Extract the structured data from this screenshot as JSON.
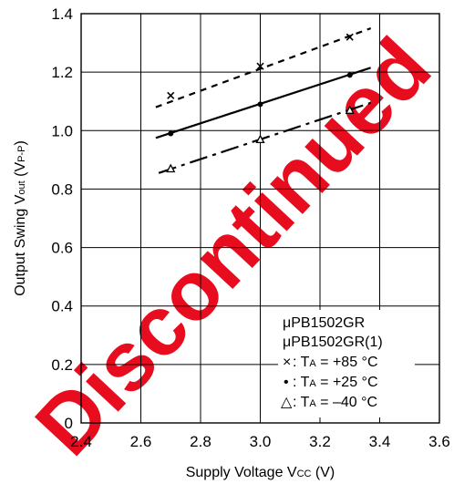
{
  "chart_data": {
    "type": "line",
    "xlabel": {
      "main": "Supply Voltage V",
      "sub": "CC",
      "unit": " (V)"
    },
    "ylabel": {
      "main": "Output Swing V",
      "sub": "out",
      "unit_pre": " (V",
      "unit_sub": "P-P",
      "unit_post": ")"
    },
    "xlim": [
      2.4,
      3.6
    ],
    "ylim": [
      0,
      1.4
    ],
    "xticks": [
      2.4,
      2.6,
      2.8,
      3.0,
      3.2,
      3.4,
      3.6
    ],
    "yticks": [
      0,
      0.2,
      0.4,
      0.6,
      0.8,
      1.0,
      1.2,
      1.4
    ],
    "xtick_labels": [
      "2.4",
      "2.6",
      "2.8",
      "3.0",
      "3.2",
      "3.4",
      "3.6"
    ],
    "ytick_labels": [
      "0",
      "0.2",
      "0.4",
      "0.6",
      "0.8",
      "1.0",
      "1.2",
      "1.4"
    ],
    "grid": true,
    "series": [
      {
        "name": "TA = +85 °C",
        "marker": "x",
        "line": "short-dash",
        "line_x": [
          2.65,
          3.37
        ],
        "line_y": [
          1.08,
          1.35
        ],
        "points": [
          {
            "x": 2.7,
            "y": 1.12
          },
          {
            "x": 3.0,
            "y": 1.22
          },
          {
            "x": 3.3,
            "y": 1.32
          }
        ]
      },
      {
        "name": "TA = +25 °C",
        "marker": "dot",
        "line": "solid",
        "line_x": [
          2.65,
          3.37
        ],
        "line_y": [
          0.975,
          1.215
        ],
        "points": [
          {
            "x": 2.7,
            "y": 0.99
          },
          {
            "x": 3.0,
            "y": 1.09
          },
          {
            "x": 3.3,
            "y": 1.19
          }
        ]
      },
      {
        "name": "TA = –40 °C",
        "marker": "triangle",
        "line": "long-dash",
        "line_x": [
          2.66,
          3.37
        ],
        "line_y": [
          0.855,
          1.095
        ],
        "points": [
          {
            "x": 2.7,
            "y": 0.87
          },
          {
            "x": 3.0,
            "y": 0.97
          },
          {
            "x": 3.3,
            "y": 1.07
          }
        ]
      }
    ],
    "legend": {
      "placement": "bottom-right",
      "title_lines": [
        "μPB1502GR",
        "μPB1502GR(1)"
      ],
      "entries": [
        {
          "symbol": "×",
          "label_pre": ": T",
          "label_sub": "A",
          "label_post": " = +85 °C"
        },
        {
          "symbol": "•",
          "label_pre": ": T",
          "label_sub": "A",
          "label_post": " = +25 °C"
        },
        {
          "symbol": "△",
          "label_pre": ": T",
          "label_sub": "A",
          "label_post": " = –40 °C"
        }
      ]
    },
    "watermark": {
      "text": "Discontinued",
      "color": "#e60012"
    }
  }
}
